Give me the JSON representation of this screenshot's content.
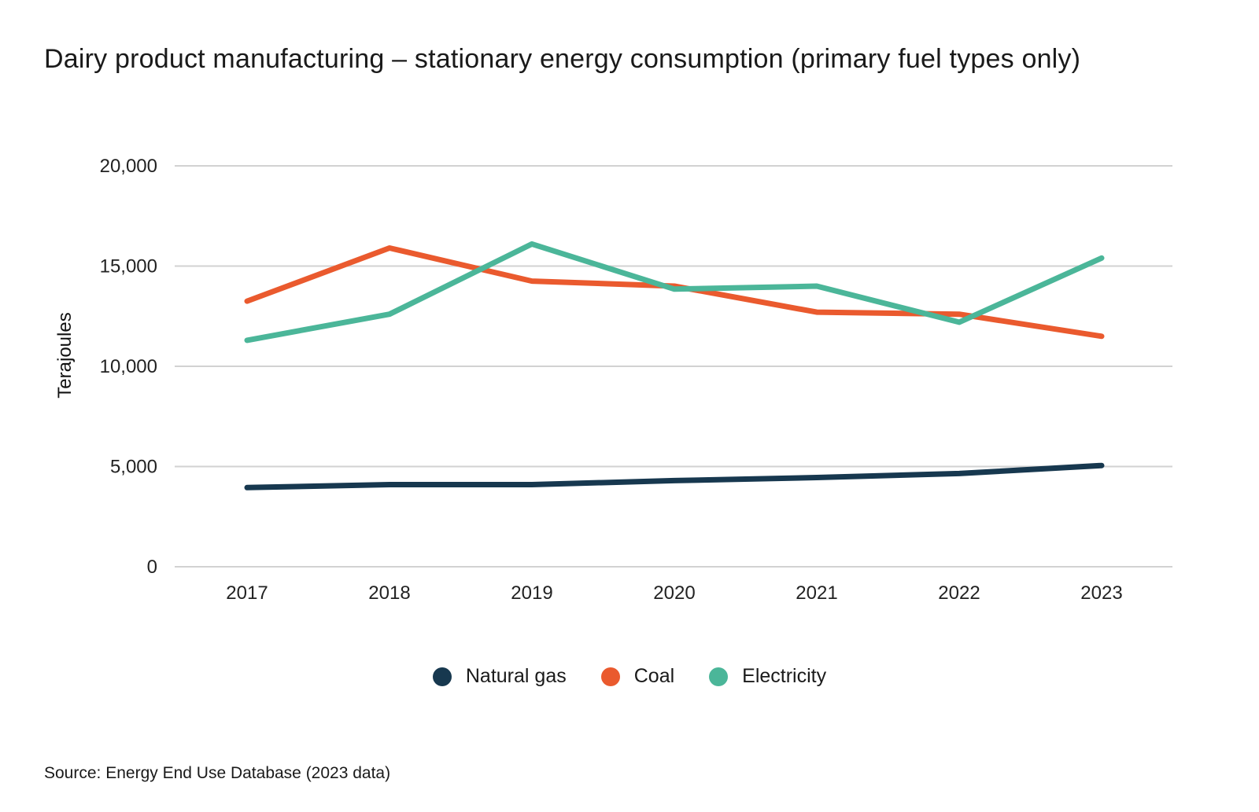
{
  "chart_data": {
    "type": "line",
    "title": "Dairy product manufacturing – stationary energy consumption (primary fuel types only)",
    "xlabel": "",
    "ylabel": "Terajoules",
    "x": [
      "2017",
      "2018",
      "2019",
      "2020",
      "2021",
      "2022",
      "2023"
    ],
    "ylim": [
      0,
      20000
    ],
    "yticks": [
      0,
      5000,
      10000,
      15000,
      20000
    ],
    "ytick_labels": [
      "0",
      "5,000",
      "10,000",
      "15,000",
      "20,000"
    ],
    "grid": true,
    "legend_position": "bottom-center",
    "series": [
      {
        "name": "Natural gas",
        "color": "#17384f",
        "values": [
          3950,
          4100,
          4100,
          4300,
          4450,
          4650,
          5050
        ]
      },
      {
        "name": "Coal",
        "color": "#ea5a2e",
        "values": [
          13250,
          15900,
          14250,
          14000,
          12700,
          12600,
          11500
        ]
      },
      {
        "name": "Electricity",
        "color": "#4bb699",
        "values": [
          11300,
          12600,
          16100,
          13850,
          14000,
          12200,
          15400
        ]
      }
    ],
    "source": "Source: Energy End Use Database (2023 data)"
  }
}
